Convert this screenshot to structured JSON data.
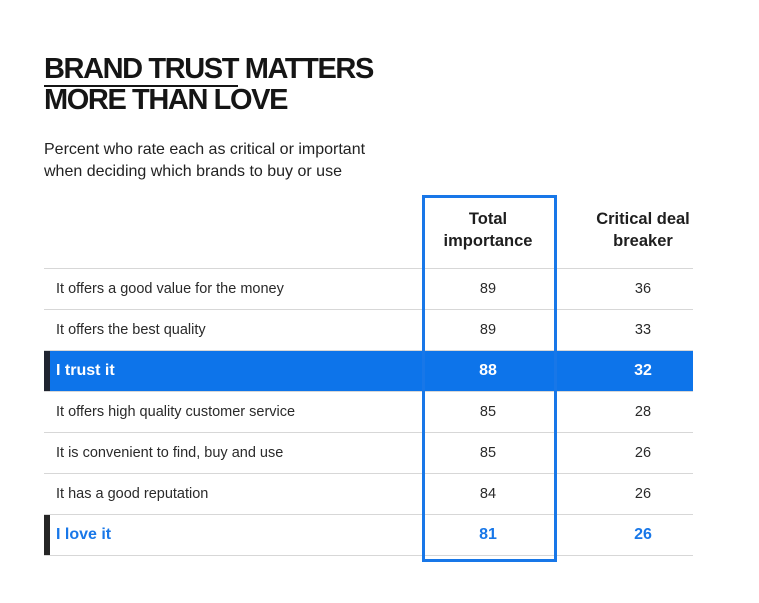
{
  "title": {
    "line1_underlined": "BRAND TRUST",
    "line1_rest": " MATTERS",
    "line2": "MORE THAN LOVE"
  },
  "subtitle": {
    "line1": "Percent who rate each as critical or important",
    "line2": "when deciding which brands to buy or use"
  },
  "colors": {
    "highlight_fill": "#0d74ea",
    "highlight_text": "#1877e8",
    "column_box": "#1877e8"
  },
  "chart_data": {
    "type": "table",
    "columns": [
      {
        "line1": "Total",
        "line2": "importance"
      },
      {
        "line1": "Critical deal",
        "line2": "breaker"
      }
    ],
    "rows": [
      {
        "label": "It offers a good value for the money",
        "total": "89",
        "critical": "36"
      },
      {
        "label": "It offers the best quality",
        "total": "89",
        "critical": "33"
      },
      {
        "label": "I trust it",
        "total": "88",
        "critical": "32"
      },
      {
        "label": "It offers high quality customer service",
        "total": "85",
        "critical": "28"
      },
      {
        "label": "It is convenient to find, buy and use",
        "total": "85",
        "critical": "26"
      },
      {
        "label": "It has a good reputation",
        "total": "84",
        "critical": "26"
      },
      {
        "label": "I love it",
        "total": "81",
        "critical": "26"
      }
    ]
  }
}
